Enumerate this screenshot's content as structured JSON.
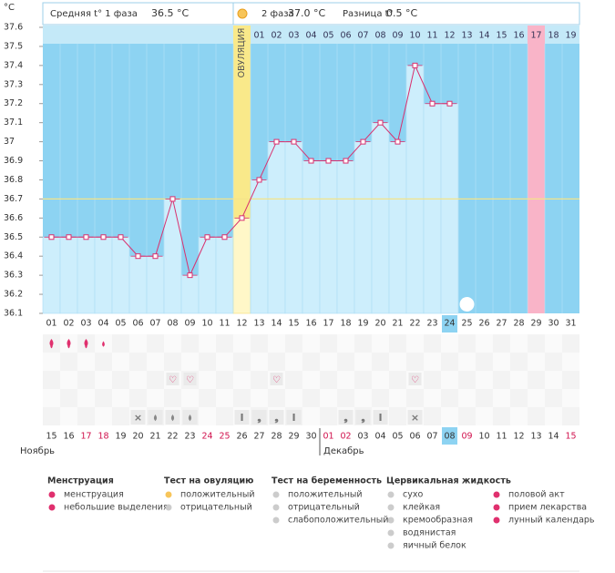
{
  "chart_data": {
    "type": "line",
    "y_unit": "°C",
    "header": {
      "phase1_label": "Средняя t° 1 фаза",
      "phase1_value": "36.5 °C",
      "phase2_label": "2 фаза",
      "phase2_value": "37.0 °C",
      "diff_label": "Разница t°",
      "diff_value": "0.5 °C"
    },
    "ovulation_label": "ОВУЛЯЦИЯ",
    "categories": [
      "01",
      "02",
      "03",
      "04",
      "05",
      "06",
      "07",
      "08",
      "09",
      "10",
      "11",
      "12",
      "13",
      "14",
      "15",
      "16",
      "17",
      "18",
      "19",
      "20",
      "21",
      "22",
      "23",
      "24",
      "25",
      "26",
      "27",
      "28",
      "29",
      "30",
      "31"
    ],
    "phase2_days": [
      "01",
      "02",
      "03",
      "04",
      "05",
      "06",
      "07",
      "08",
      "09",
      "10",
      "11",
      "12",
      "13",
      "14",
      "15",
      "16",
      "17",
      "18",
      "19"
    ],
    "series": [
      {
        "name": "t°",
        "color": "#d9306e",
        "values": [
          36.5,
          36.5,
          36.5,
          36.5,
          36.5,
          36.4,
          36.4,
          36.7,
          36.3,
          36.5,
          36.5,
          36.6,
          36.8,
          37.0,
          37.0,
          36.9,
          36.9,
          36.9,
          37.0,
          37.1,
          37.0,
          37.4,
          37.2,
          37.2,
          null,
          null,
          null,
          null,
          null,
          null,
          null
        ]
      }
    ],
    "coverline": 36.7,
    "ylim": [
      36.1,
      37.6
    ],
    "yticks": [
      36.1,
      36.2,
      36.3,
      36.4,
      36.5,
      36.6,
      36.7,
      36.8,
      36.9,
      37,
      37.1,
      37.2,
      37.3,
      37.4,
      37.5,
      37.6
    ],
    "dates": [
      "15",
      "16",
      "17",
      "18",
      "19",
      "20",
      "21",
      "22",
      "23",
      "24",
      "25",
      "26",
      "27",
      "28",
      "29",
      "30",
      "01",
      "02",
      "03",
      "04",
      "05",
      "06",
      "07",
      "08",
      "09",
      "10",
      "11",
      "12",
      "13",
      "14",
      "15"
    ],
    "date_colors": [
      "#333",
      "#333",
      "#d0104c",
      "#d0104c",
      "#333",
      "#333",
      "#333",
      "#333",
      "#333",
      "#d0104c",
      "#d0104c",
      "#333",
      "#333",
      "#333",
      "#333",
      "#333",
      "#d0104c",
      "#d0104c",
      "#333",
      "#333",
      "#333",
      "#333",
      "#333",
      "#333",
      "#d0104c",
      "#333",
      "#333",
      "#333",
      "#333",
      "#333",
      "#d0104c"
    ],
    "months": [
      "Ноябрь",
      "Декабрь"
    ],
    "legend": [
      {
        "title": "Менструация",
        "items": [
          "менструация",
          "небольшие выделения"
        ]
      },
      {
        "title": "Тест на овуляцию",
        "items": [
          "положительный",
          "отрицательный"
        ]
      },
      {
        "title": "Тест на беременность",
        "items": [
          "положительный",
          "отрицательный",
          "слабоположительный"
        ]
      },
      {
        "title": "Цервикальная жидкость",
        "items": [
          "сухо",
          "клейкая",
          "кремообразная",
          "водянистая",
          "яичный белок"
        ]
      },
      {
        "items": [
          "половой акт",
          "прием лекарства",
          "лунный календарь"
        ]
      }
    ]
  }
}
